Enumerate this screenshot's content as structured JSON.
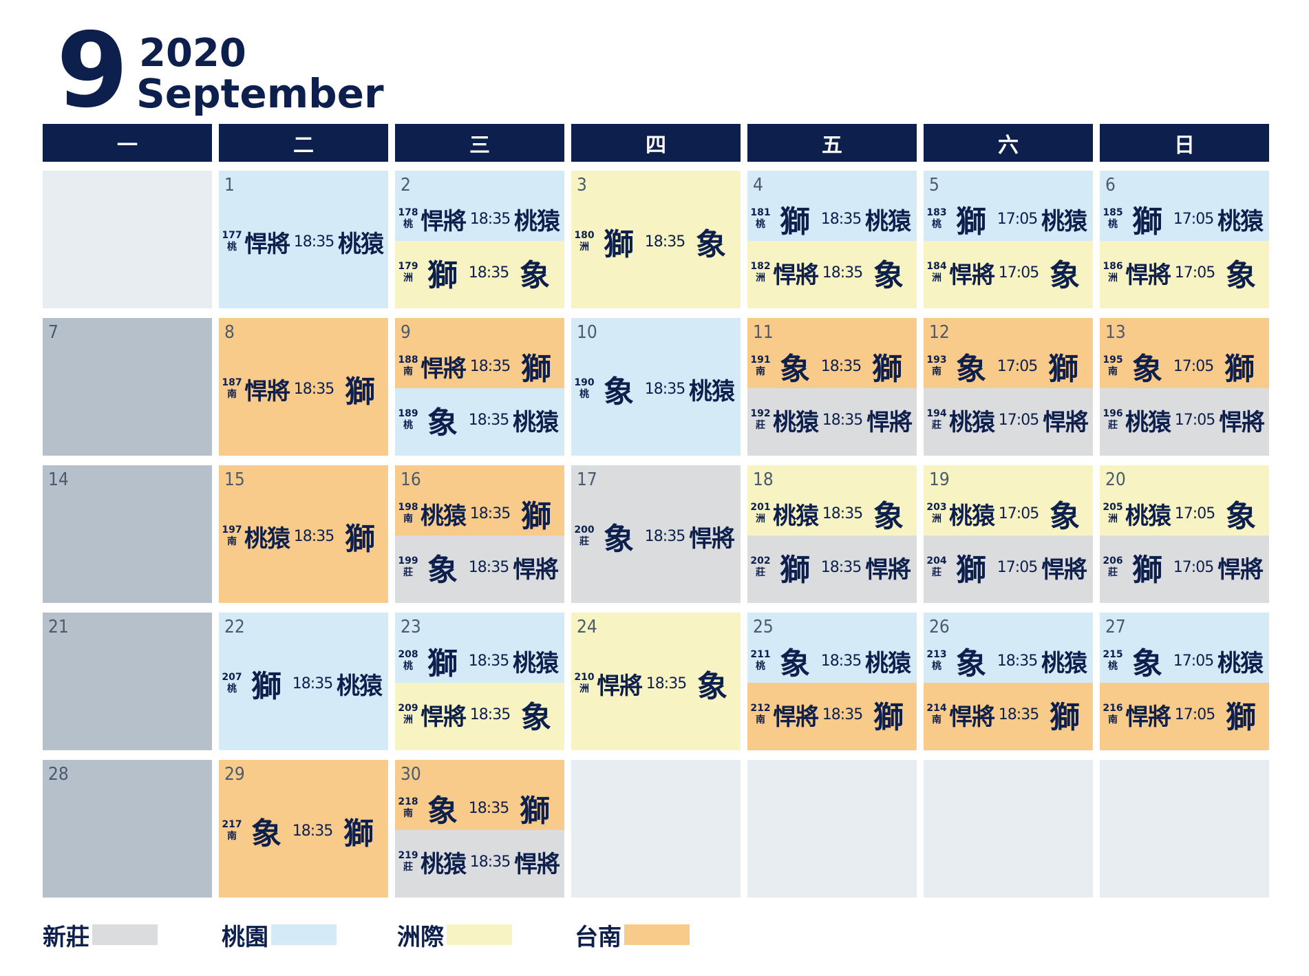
{
  "header": {
    "month_number": "9",
    "year": "2020",
    "month_name": "September"
  },
  "weekdays": [
    "一",
    "二",
    "三",
    "四",
    "五",
    "六",
    "日"
  ],
  "venues": {
    "xz": {
      "label": "新莊",
      "color": "#dadcde"
    },
    "ty": {
      "label": "桃園",
      "color": "#d4eaf7"
    },
    "zj": {
      "label": "洲際",
      "color": "#f7f3c2"
    },
    "tn": {
      "label": "台南",
      "color": "#f8cb8a"
    }
  },
  "legend": [
    "新莊",
    "桃園",
    "洲際",
    "台南"
  ],
  "weeks": [
    [
      {
        "day": ""
      },
      {
        "day": "1",
        "games": [
          {
            "no": "177",
            "venue": "ty",
            "venue_char": "桃",
            "away": "悍將",
            "time": "18:35",
            "home": "桃猿"
          }
        ]
      },
      {
        "day": "2",
        "games": [
          {
            "no": "178",
            "venue": "ty",
            "venue_char": "桃",
            "away": "悍將",
            "time": "18:35",
            "home": "桃猿"
          },
          {
            "no": "179",
            "venue": "zj",
            "venue_char": "洲",
            "away": "獅",
            "time": "18:35",
            "home": "象"
          }
        ]
      },
      {
        "day": "3",
        "games": [
          {
            "no": "180",
            "venue": "zj",
            "venue_char": "洲",
            "away": "獅",
            "time": "18:35",
            "home": "象"
          }
        ]
      },
      {
        "day": "4",
        "games": [
          {
            "no": "181",
            "venue": "ty",
            "venue_char": "桃",
            "away": "獅",
            "time": "18:35",
            "home": "桃猿"
          },
          {
            "no": "182",
            "venue": "zj",
            "venue_char": "洲",
            "away": "悍將",
            "time": "18:35",
            "home": "象"
          }
        ]
      },
      {
        "day": "5",
        "games": [
          {
            "no": "183",
            "venue": "ty",
            "venue_char": "桃",
            "away": "獅",
            "time": "17:05",
            "home": "桃猿"
          },
          {
            "no": "184",
            "venue": "zj",
            "venue_char": "洲",
            "away": "悍將",
            "time": "17:05",
            "home": "象"
          }
        ]
      },
      {
        "day": "6",
        "games": [
          {
            "no": "185",
            "venue": "ty",
            "venue_char": "桃",
            "away": "獅",
            "time": "17:05",
            "home": "桃猿"
          },
          {
            "no": "186",
            "venue": "zj",
            "venue_char": "洲",
            "away": "悍將",
            "time": "17:05",
            "home": "象"
          }
        ]
      }
    ],
    [
      {
        "day": "7",
        "games": []
      },
      {
        "day": "8",
        "games": [
          {
            "no": "187",
            "venue": "tn",
            "venue_char": "南",
            "away": "悍將",
            "time": "18:35",
            "home": "獅"
          }
        ]
      },
      {
        "day": "9",
        "games": [
          {
            "no": "188",
            "venue": "tn",
            "venue_char": "南",
            "away": "悍將",
            "time": "18:35",
            "home": "獅"
          },
          {
            "no": "189",
            "venue": "ty",
            "venue_char": "桃",
            "away": "象",
            "time": "18:35",
            "home": "桃猿"
          }
        ]
      },
      {
        "day": "10",
        "games": [
          {
            "no": "190",
            "venue": "ty",
            "venue_char": "桃",
            "away": "象",
            "time": "18:35",
            "home": "桃猿"
          }
        ]
      },
      {
        "day": "11",
        "games": [
          {
            "no": "191",
            "venue": "tn",
            "venue_char": "南",
            "away": "象",
            "time": "18:35",
            "home": "獅"
          },
          {
            "no": "192",
            "venue": "xz",
            "venue_char": "莊",
            "away": "桃猿",
            "time": "18:35",
            "home": "悍將"
          }
        ]
      },
      {
        "day": "12",
        "games": [
          {
            "no": "193",
            "venue": "tn",
            "venue_char": "南",
            "away": "象",
            "time": "17:05",
            "home": "獅"
          },
          {
            "no": "194",
            "venue": "xz",
            "venue_char": "莊",
            "away": "桃猿",
            "time": "17:05",
            "home": "悍將"
          }
        ]
      },
      {
        "day": "13",
        "games": [
          {
            "no": "195",
            "venue": "tn",
            "venue_char": "南",
            "away": "象",
            "time": "17:05",
            "home": "獅"
          },
          {
            "no": "196",
            "venue": "xz",
            "venue_char": "莊",
            "away": "桃猿",
            "time": "17:05",
            "home": "悍將"
          }
        ]
      }
    ],
    [
      {
        "day": "14",
        "games": []
      },
      {
        "day": "15",
        "games": [
          {
            "no": "197",
            "venue": "tn",
            "venue_char": "南",
            "away": "桃猿",
            "time": "18:35",
            "home": "獅"
          }
        ]
      },
      {
        "day": "16",
        "games": [
          {
            "no": "198",
            "venue": "tn",
            "venue_char": "南",
            "away": "桃猿",
            "time": "18:35",
            "home": "獅"
          },
          {
            "no": "199",
            "venue": "xz",
            "venue_char": "莊",
            "away": "象",
            "time": "18:35",
            "home": "悍將"
          }
        ]
      },
      {
        "day": "17",
        "games": [
          {
            "no": "200",
            "venue": "xz",
            "venue_char": "莊",
            "away": "象",
            "time": "18:35",
            "home": "悍將"
          }
        ]
      },
      {
        "day": "18",
        "games": [
          {
            "no": "201",
            "venue": "zj",
            "venue_char": "洲",
            "away": "桃猿",
            "time": "18:35",
            "home": "象"
          },
          {
            "no": "202",
            "venue": "xz",
            "venue_char": "莊",
            "away": "獅",
            "time": "18:35",
            "home": "悍將"
          }
        ]
      },
      {
        "day": "19",
        "games": [
          {
            "no": "203",
            "venue": "zj",
            "venue_char": "洲",
            "away": "桃猿",
            "time": "17:05",
            "home": "象"
          },
          {
            "no": "204",
            "venue": "xz",
            "venue_char": "莊",
            "away": "獅",
            "time": "17:05",
            "home": "悍將"
          }
        ]
      },
      {
        "day": "20",
        "games": [
          {
            "no": "205",
            "venue": "zj",
            "venue_char": "洲",
            "away": "桃猿",
            "time": "17:05",
            "home": "象"
          },
          {
            "no": "206",
            "venue": "xz",
            "venue_char": "莊",
            "away": "獅",
            "time": "17:05",
            "home": "悍將"
          }
        ]
      }
    ],
    [
      {
        "day": "21",
        "games": []
      },
      {
        "day": "22",
        "games": [
          {
            "no": "207",
            "venue": "ty",
            "venue_char": "桃",
            "away": "獅",
            "time": "18:35",
            "home": "桃猿"
          }
        ]
      },
      {
        "day": "23",
        "games": [
          {
            "no": "208",
            "venue": "ty",
            "venue_char": "桃",
            "away": "獅",
            "time": "18:35",
            "home": "桃猿"
          },
          {
            "no": "209",
            "venue": "zj",
            "venue_char": "洲",
            "away": "悍將",
            "time": "18:35",
            "home": "象"
          }
        ]
      },
      {
        "day": "24",
        "games": [
          {
            "no": "210",
            "venue": "zj",
            "venue_char": "洲",
            "away": "悍將",
            "time": "18:35",
            "home": "象"
          }
        ]
      },
      {
        "day": "25",
        "games": [
          {
            "no": "211",
            "venue": "ty",
            "venue_char": "桃",
            "away": "象",
            "time": "18:35",
            "home": "桃猿"
          },
          {
            "no": "212",
            "venue": "tn",
            "venue_char": "南",
            "away": "悍將",
            "time": "18:35",
            "home": "獅"
          }
        ]
      },
      {
        "day": "26",
        "games": [
          {
            "no": "213",
            "venue": "ty",
            "venue_char": "桃",
            "away": "象",
            "time": "18:35",
            "home": "桃猿"
          },
          {
            "no": "214",
            "venue": "tn",
            "venue_char": "南",
            "away": "悍將",
            "time": "18:35",
            "home": "獅"
          }
        ]
      },
      {
        "day": "27",
        "games": [
          {
            "no": "215",
            "venue": "ty",
            "venue_char": "桃",
            "away": "象",
            "time": "17:05",
            "home": "桃猿"
          },
          {
            "no": "216",
            "venue": "tn",
            "venue_char": "南",
            "away": "悍將",
            "time": "17:05",
            "home": "獅"
          }
        ]
      }
    ],
    [
      {
        "day": "28",
        "games": []
      },
      {
        "day": "29",
        "games": [
          {
            "no": "217",
            "venue": "tn",
            "venue_char": "南",
            "away": "象",
            "time": "18:35",
            "home": "獅"
          }
        ]
      },
      {
        "day": "30",
        "games": [
          {
            "no": "218",
            "venue": "tn",
            "venue_char": "南",
            "away": "象",
            "time": "18:35",
            "home": "獅"
          },
          {
            "no": "219",
            "venue": "xz",
            "venue_char": "莊",
            "away": "桃猿",
            "time": "18:35",
            "home": "悍將"
          }
        ]
      },
      {
        "day": ""
      },
      {
        "day": ""
      },
      {
        "day": ""
      },
      {
        "day": ""
      }
    ]
  ]
}
